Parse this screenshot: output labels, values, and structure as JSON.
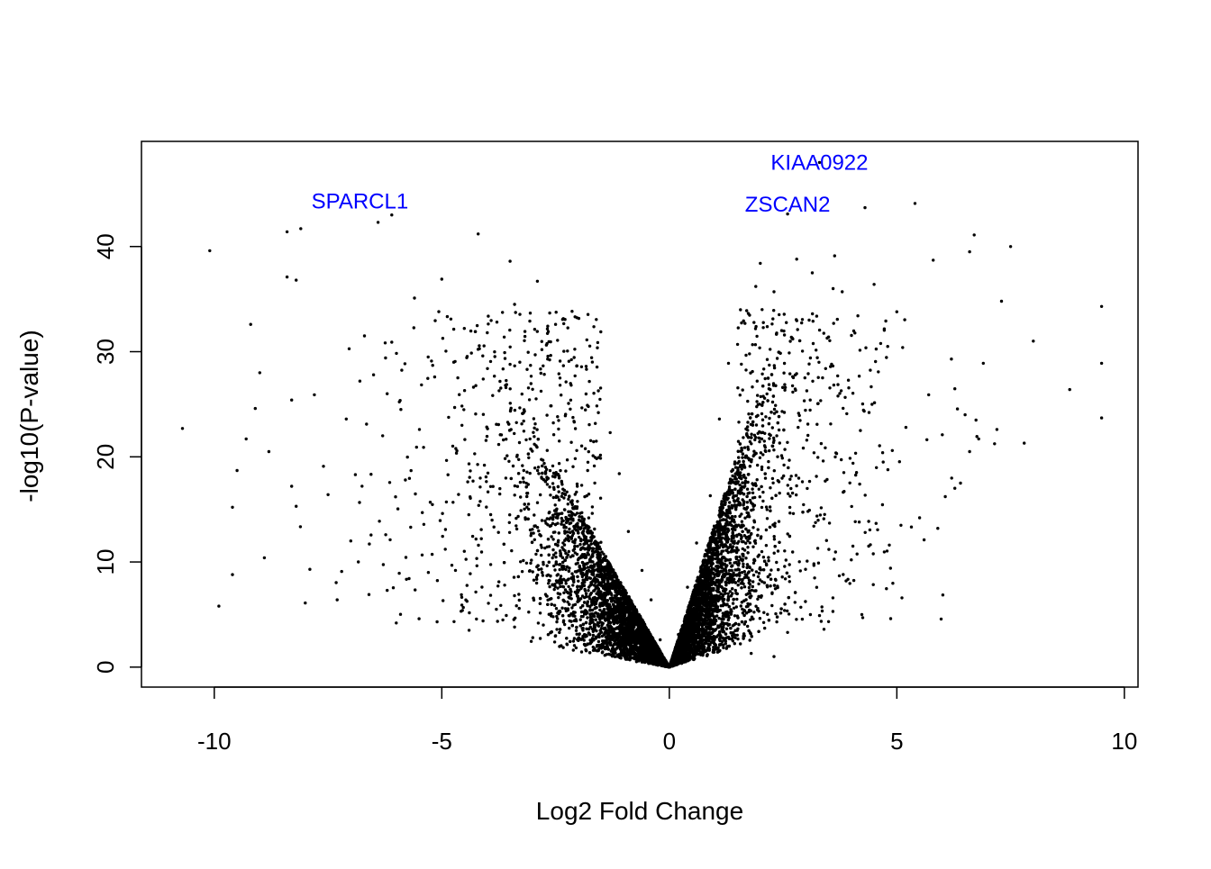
{
  "chart_data": {
    "type": "scatter",
    "title": "",
    "xlabel": "Log2 Fold Change",
    "ylabel": "-log10(P-value)",
    "xlim": [
      -11.6,
      10.3
    ],
    "ylim": [
      -1.9,
      50.0
    ],
    "xticks": [
      -10,
      -5,
      0,
      5,
      10
    ],
    "xtick_labels": [
      "-10",
      "-5",
      "0",
      "5",
      "10"
    ],
    "yticks": [
      0,
      10,
      20,
      30,
      40
    ],
    "ytick_labels": [
      "0",
      "10",
      "20",
      "30",
      "40"
    ],
    "grid": false,
    "legend": "none",
    "point_color": "#000000",
    "label_color": "#0000ff",
    "annotations": [
      {
        "text": "KIAA0922",
        "x": 3.3,
        "y": 48.0
      },
      {
        "text": "ZSCAN2",
        "x": 2.6,
        "y": 44.0
      },
      {
        "text": "SPARCL1",
        "x": -6.8,
        "y": 44.3
      }
    ],
    "points": [
      [
        -10.7,
        22.7
      ],
      [
        -10.1,
        39.6
      ],
      [
        -9.9,
        5.8
      ],
      [
        -9.6,
        15.2
      ],
      [
        -9.6,
        8.8
      ],
      [
        -9.5,
        18.7
      ],
      [
        -9.3,
        21.7
      ],
      [
        -9.2,
        32.6
      ],
      [
        -9.1,
        24.6
      ],
      [
        -9.0,
        28.0
      ],
      [
        -8.9,
        10.4
      ],
      [
        -8.8,
        20.5
      ],
      [
        -8.4,
        41.4
      ],
      [
        -8.4,
        37.1
      ],
      [
        -8.3,
        25.4
      ],
      [
        -8.2,
        36.8
      ],
      [
        -8.1,
        41.7
      ],
      [
        -8.0,
        6.1
      ],
      [
        -7.9,
        9.3
      ],
      [
        -7.8,
        25.9
      ],
      [
        -7.5,
        16.4
      ],
      [
        -7.3,
        6.4
      ],
      [
        -7.1,
        23.6
      ],
      [
        -6.8,
        27.2
      ],
      [
        -6.7,
        31.5
      ],
      [
        -6.5,
        27.8
      ],
      [
        -6.4,
        42.3
      ],
      [
        -6.3,
        22.0
      ],
      [
        -6.2,
        7.3
      ],
      [
        -6.1,
        30.9
      ],
      [
        -6.1,
        43.0
      ],
      [
        -6.0,
        4.2
      ],
      [
        -5.8,
        17.8
      ],
      [
        -5.6,
        35.1
      ],
      [
        -5.4,
        20.9
      ],
      [
        -5.2,
        28.7
      ],
      [
        -5.0,
        36.9
      ],
      [
        -4.8,
        33.1
      ],
      [
        -4.7,
        9.2
      ],
      [
        -4.5,
        26.3
      ],
      [
        -4.2,
        41.2
      ],
      [
        -4.0,
        31.8
      ],
      [
        -3.8,
        5.5
      ],
      [
        -3.5,
        38.6
      ],
      [
        -3.4,
        34.5
      ],
      [
        -3.2,
        23.4
      ],
      [
        -2.9,
        36.7
      ],
      [
        -2.8,
        30.2
      ],
      [
        -2.5,
        32.6
      ],
      [
        -2.4,
        29.1
      ],
      [
        -2.2,
        3.7
      ],
      [
        -1.8,
        24.9
      ],
      [
        -1.5,
        6.9
      ],
      [
        -1.3,
        22.3
      ],
      [
        -1.1,
        18.4
      ],
      [
        -0.9,
        12.9
      ],
      [
        -0.6,
        9.2
      ],
      [
        -0.4,
        6.4
      ],
      [
        -0.2,
        2.6
      ],
      [
        0.2,
        3.1
      ],
      [
        0.4,
        7.6
      ],
      [
        0.6,
        11.8
      ],
      [
        0.9,
        16.3
      ],
      [
        1.1,
        23.6
      ],
      [
        1.3,
        28.9
      ],
      [
        1.5,
        30.7
      ],
      [
        1.7,
        33.9
      ],
      [
        1.9,
        36.2
      ],
      [
        2.0,
        38.4
      ],
      [
        2.3,
        35.7
      ],
      [
        2.6,
        43.1
      ],
      [
        2.8,
        38.8
      ],
      [
        3.1,
        29.4
      ],
      [
        3.3,
        48.0
      ],
      [
        3.6,
        36.0
      ],
      [
        3.8,
        35.7
      ],
      [
        3.9,
        24.1
      ],
      [
        4.3,
        43.7
      ],
      [
        4.5,
        36.4
      ],
      [
        4.8,
        30.5
      ],
      [
        5.0,
        33.8
      ],
      [
        5.4,
        44.1
      ],
      [
        5.6,
        12.1
      ],
      [
        5.8,
        38.7
      ],
      [
        5.9,
        13.2
      ],
      [
        6.2,
        29.3
      ],
      [
        6.4,
        17.5
      ],
      [
        6.6,
        39.5
      ],
      [
        6.7,
        41.1
      ],
      [
        6.9,
        28.9
      ],
      [
        7.2,
        22.6
      ],
      [
        7.3,
        34.8
      ],
      [
        7.5,
        40.0
      ],
      [
        7.8,
        21.3
      ],
      [
        8.0,
        31.0
      ],
      [
        8.8,
        26.4
      ],
      [
        9.5,
        34.3
      ],
      [
        9.5,
        28.9
      ],
      [
        9.5,
        23.7
      ],
      [
        -5.9,
        24.5
      ],
      [
        -6.9,
        18.3
      ],
      [
        -7.6,
        19.1
      ],
      [
        -8.3,
        17.2
      ],
      [
        -8.2,
        15.3
      ],
      [
        -7.0,
        12.0
      ],
      [
        -7.2,
        9.1
      ],
      [
        -6.6,
        6.9
      ],
      [
        -5.5,
        4.6
      ],
      [
        -4.4,
        3.5
      ],
      [
        -3.0,
        2.8
      ],
      [
        1.8,
        1.3
      ],
      [
        2.3,
        1.0
      ],
      [
        2.6,
        3.3
      ],
      [
        3.4,
        3.6
      ],
      [
        3.3,
        4.9
      ],
      [
        4.0,
        10.2
      ],
      [
        4.7,
        19.5
      ],
      [
        5.2,
        22.8
      ],
      [
        5.7,
        25.9
      ],
      [
        6.0,
        22.1
      ],
      [
        6.5,
        24.0
      ],
      [
        6.8,
        21.7
      ],
      [
        6.6,
        20.5
      ],
      [
        5.5,
        14.2
      ],
      [
        4.9,
        20.6
      ],
      [
        4.2,
        22.5
      ],
      [
        3.7,
        27.7
      ],
      [
        3.5,
        31.4
      ],
      [
        -3.6,
        26.8
      ],
      [
        -4.1,
        29.6
      ],
      [
        -5.3,
        29.5
      ],
      [
        -6.2,
        26.0
      ]
    ],
    "note_cloud": "dense point cloud between the listed outliers"
  }
}
